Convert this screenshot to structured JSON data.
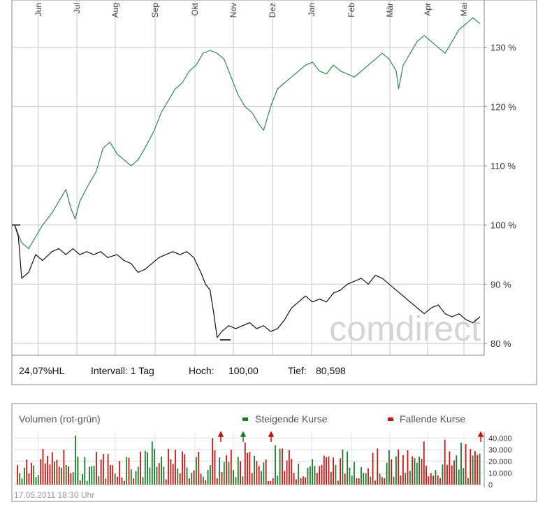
{
  "stats": {
    "label": "24,07%HL",
    "interval": "Intervall: 1 Tag",
    "high_label": "Hoch:",
    "high_value": "100,00",
    "low_label": "Tief:",
    "low_value": "80,598"
  },
  "watermark": "comdirect",
  "volume_panel": {
    "title": "Volumen (rot-grün)",
    "legend_up": "Steigende Kurse",
    "legend_down": "Fallende Kurse",
    "date": "17.05.2011 18:30 Uhr",
    "up_color": "#1a7a2a",
    "down_color": "#cc1111"
  },
  "chart_data": [
    {
      "type": "line",
      "x_ticks": [
        "Jun",
        "Jul",
        "Aug",
        "Sep",
        "Okt",
        "Nov",
        "Dez",
        "Jan",
        "Feb",
        "Mär",
        "Apr",
        "Mai"
      ],
      "y_ticks": [
        "80 %",
        "90 %",
        "100 %",
        "110 %",
        "120 %",
        "130 %"
      ],
      "ylim": [
        78,
        138
      ],
      "x_range": [
        0,
        100
      ],
      "grid": true,
      "series": [
        {
          "color": "#2e8b4a",
          "points": [
            [
              0,
              100
            ],
            [
              1.5,
              97
            ],
            [
              3,
              96
            ],
            [
              4.5,
              98
            ],
            [
              6,
              100
            ],
            [
              8,
              102
            ],
            [
              9.5,
              104
            ],
            [
              11,
              106
            ],
            [
              12,
              103
            ],
            [
              13,
              101
            ],
            [
              14,
              104
            ],
            [
              16,
              107
            ],
            [
              17.5,
              109
            ],
            [
              19,
              113
            ],
            [
              20.5,
              114
            ],
            [
              22,
              112
            ],
            [
              23.5,
              111
            ],
            [
              25,
              110
            ],
            [
              26.5,
              111
            ],
            [
              28,
              113
            ],
            [
              30,
              116
            ],
            [
              31.5,
              119
            ],
            [
              33,
              121
            ],
            [
              34.5,
              123
            ],
            [
              36,
              124
            ],
            [
              37.5,
              126
            ],
            [
              39,
              127
            ],
            [
              40.5,
              129
            ],
            [
              42,
              129.5
            ],
            [
              43.5,
              129
            ],
            [
              45,
              128
            ],
            [
              46.5,
              125
            ],
            [
              48,
              122
            ],
            [
              49.5,
              120
            ],
            [
              51,
              119
            ],
            [
              52.5,
              117
            ],
            [
              53.5,
              116
            ],
            [
              55,
              120
            ],
            [
              56.5,
              123
            ],
            [
              58,
              124
            ],
            [
              59.5,
              125
            ],
            [
              61,
              126
            ],
            [
              62.5,
              127
            ],
            [
              64,
              127.5
            ],
            [
              65.5,
              126
            ],
            [
              67,
              125.5
            ],
            [
              68.5,
              127
            ],
            [
              70,
              126
            ],
            [
              71.5,
              125.5
            ],
            [
              73,
              125
            ],
            [
              74.5,
              126
            ],
            [
              76,
              127
            ],
            [
              77.5,
              128
            ],
            [
              79,
              129
            ],
            [
              80.5,
              128
            ],
            [
              82,
              126
            ],
            [
              82.5,
              123
            ],
            [
              83.5,
              127
            ],
            [
              85,
              129
            ],
            [
              86.5,
              131
            ],
            [
              88,
              132
            ],
            [
              89.5,
              131
            ],
            [
              91,
              130
            ],
            [
              92.5,
              129
            ],
            [
              94,
              131
            ],
            [
              95.5,
              133
            ],
            [
              97,
              134
            ],
            [
              98.5,
              135
            ],
            [
              100,
              134
            ]
          ]
        },
        {
          "color": "#111111",
          "points": [
            [
              0,
              100
            ],
            [
              0.8,
              98
            ],
            [
              1.5,
              91
            ],
            [
              3,
              92
            ],
            [
              4.5,
              95
            ],
            [
              6,
              94
            ],
            [
              8,
              95.5
            ],
            [
              9.5,
              96
            ],
            [
              11,
              95
            ],
            [
              12.5,
              96
            ],
            [
              14,
              95
            ],
            [
              15.5,
              95.5
            ],
            [
              17,
              95
            ],
            [
              18.5,
              95.5
            ],
            [
              20,
              94.5
            ],
            [
              22,
              95
            ],
            [
              23.5,
              94
            ],
            [
              25,
              93.5
            ],
            [
              26.5,
              92
            ],
            [
              28,
              92.5
            ],
            [
              29.5,
              93.5
            ],
            [
              31,
              94.5
            ],
            [
              32.5,
              95
            ],
            [
              34,
              95.5
            ],
            [
              35.5,
              95
            ],
            [
              37,
              95.5
            ],
            [
              38.5,
              94.5
            ],
            [
              40,
              92
            ],
            [
              41,
              90
            ],
            [
              42,
              89
            ],
            [
              42.8,
              85
            ],
            [
              43.5,
              81
            ],
            [
              44.5,
              82
            ],
            [
              46,
              83
            ],
            [
              47.5,
              82.5
            ],
            [
              49,
              83
            ],
            [
              50.5,
              83.5
            ],
            [
              52,
              82.5
            ],
            [
              53.5,
              83
            ],
            [
              55,
              82
            ],
            [
              56.5,
              82.5
            ],
            [
              58,
              84
            ],
            [
              59.5,
              86
            ],
            [
              61,
              87
            ],
            [
              62.5,
              88
            ],
            [
              64,
              87
            ],
            [
              65.5,
              87.5
            ],
            [
              67,
              87
            ],
            [
              68.5,
              88.5
            ],
            [
              70,
              89
            ],
            [
              71.5,
              90
            ],
            [
              73,
              90.5
            ],
            [
              74.5,
              91
            ],
            [
              76,
              90
            ],
            [
              77.5,
              91.5
            ],
            [
              79,
              91
            ],
            [
              80.5,
              90
            ],
            [
              82,
              89
            ],
            [
              83.5,
              88
            ],
            [
              85,
              87
            ],
            [
              86.5,
              86
            ],
            [
              88,
              85
            ],
            [
              89.5,
              86
            ],
            [
              91,
              86.5
            ],
            [
              92.5,
              85
            ],
            [
              94,
              84.5
            ],
            [
              95.5,
              85
            ],
            [
              97,
              84
            ],
            [
              98.5,
              83.5
            ],
            [
              100,
              84.5
            ]
          ]
        }
      ]
    },
    {
      "type": "bar",
      "y_ticks": [
        "40.000",
        "30.000",
        "20.000",
        "10.000",
        "0"
      ],
      "ylim": [
        0,
        45000
      ],
      "count": 200
    }
  ]
}
